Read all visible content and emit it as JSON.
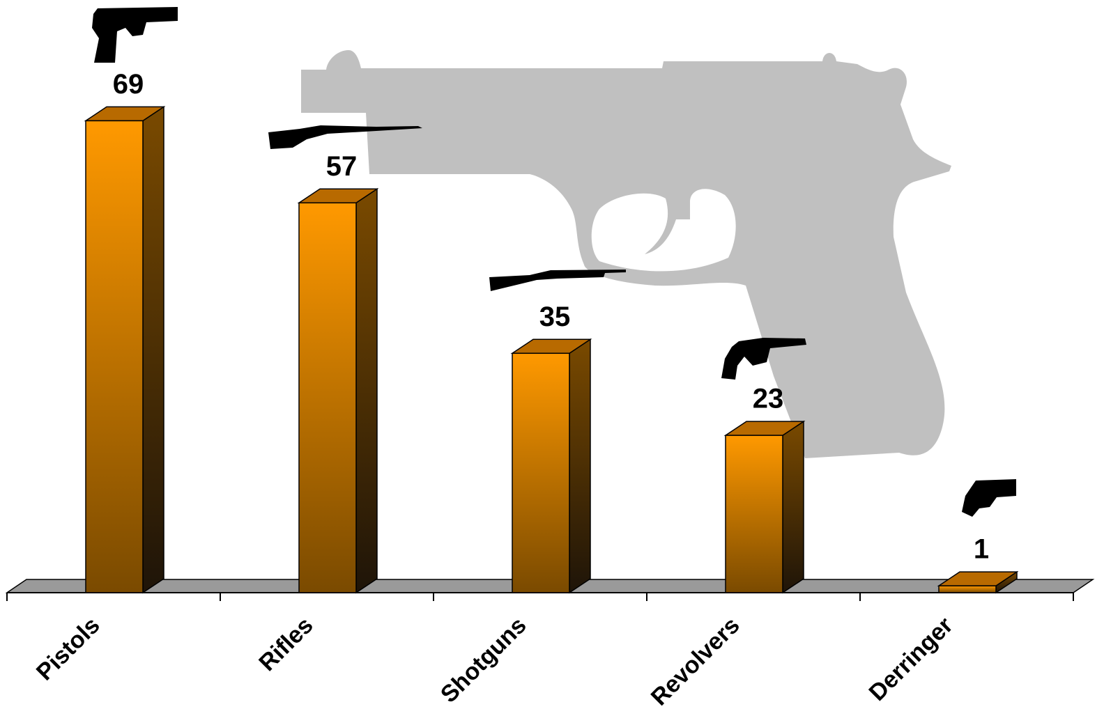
{
  "chart_data": {
    "type": "bar",
    "categories": [
      "Pistols",
      "Rifles",
      "Shotguns",
      "Revolvers",
      "Derringer"
    ],
    "values": [
      69,
      57,
      35,
      23,
      1
    ],
    "color": "#ff9900"
  }
}
